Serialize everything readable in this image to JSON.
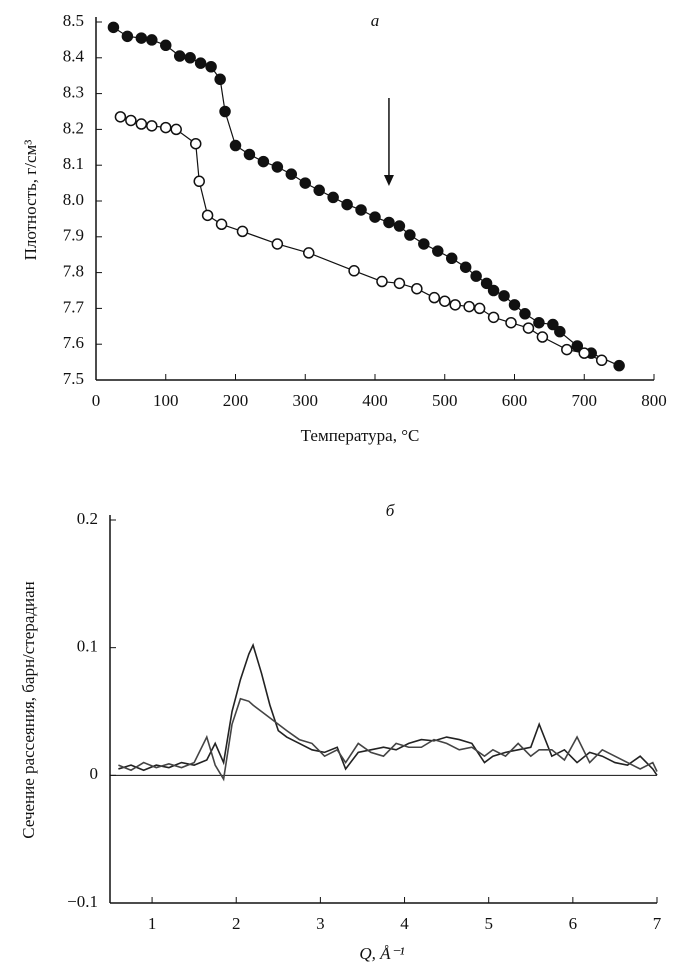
{
  "chart_data": [
    {
      "type": "line",
      "title": "а",
      "x_label": "Температура, °С",
      "y_label": "Плотность, г/см³",
      "xlim": [
        0,
        800
      ],
      "ylim": [
        7.5,
        8.5
      ],
      "xticks": [
        0,
        100,
        200,
        300,
        400,
        500,
        600,
        700,
        800
      ],
      "yticks": [
        7.5,
        7.6,
        7.7,
        7.8,
        7.9,
        {
          "value": 8,
          "label": "8.0"
        },
        8.1,
        8.2,
        8.3,
        8.4,
        8.5
      ],
      "arrow_x": 420,
      "series": [
        {
          "color": "#111",
          "marker": "filled",
          "x": [
            25,
            45,
            65,
            80,
            100,
            120,
            135,
            150,
            165,
            178,
            185,
            200,
            220,
            240,
            260,
            280,
            300,
            320,
            340,
            360,
            380,
            400,
            420,
            435,
            450,
            470,
            490,
            510,
            530,
            545,
            560,
            570,
            585,
            600,
            615,
            635,
            655,
            665,
            690,
            710,
            750
          ],
          "values": [
            8.485,
            8.46,
            8.455,
            8.45,
            8.435,
            8.405,
            8.4,
            8.385,
            8.375,
            8.34,
            8.25,
            8.155,
            8.13,
            8.11,
            8.095,
            8.075,
            8.05,
            8.03,
            8.01,
            7.99,
            7.975,
            7.955,
            7.94,
            7.93,
            7.905,
            7.88,
            7.86,
            7.84,
            7.815,
            7.79,
            7.77,
            7.75,
            7.735,
            7.71,
            7.685,
            7.66,
            7.655,
            7.635,
            7.595,
            7.575,
            7.54
          ]
        },
        {
          "color": "#111",
          "marker": "open",
          "x": [
            35,
            50,
            65,
            80,
            100,
            115,
            143,
            148,
            160,
            180,
            210,
            260,
            305,
            370,
            410,
            435,
            460,
            485,
            500,
            515,
            535,
            550,
            570,
            595,
            620,
            640,
            675,
            700,
            725
          ],
          "values": [
            8.235,
            8.225,
            8.215,
            8.21,
            8.205,
            8.2,
            8.16,
            8.055,
            7.96,
            7.935,
            7.915,
            7.88,
            7.855,
            7.805,
            7.775,
            7.77,
            7.755,
            7.73,
            7.72,
            7.71,
            7.705,
            7.7,
            7.675,
            7.66,
            7.645,
            7.62,
            7.585,
            7.575,
            7.555
          ]
        }
      ]
    },
    {
      "type": "line",
      "title": "б",
      "x_label": "Q, Å⁻¹",
      "y_label": "Сечение рассеяния, барн/стерадиан",
      "xlim": [
        0.5,
        7
      ],
      "ylim": [
        -0.1,
        0.2
      ],
      "xticks": [
        1,
        2,
        3,
        4,
        5,
        6,
        7
      ],
      "yticks": [
        {
          "value": -0.1,
          "label": "−0.1"
        },
        0,
        0.1,
        0.2
      ],
      "zero_line": true,
      "series": [
        {
          "color": "#222",
          "marker": "none",
          "x": [
            0.6,
            0.75,
            0.9,
            1.05,
            1.2,
            1.35,
            1.5,
            1.65,
            1.75,
            1.85,
            1.95,
            2.05,
            2.15,
            2.2,
            2.3,
            2.4,
            2.5,
            2.6,
            2.75,
            2.9,
            3.05,
            3.2,
            3.3,
            3.45,
            3.6,
            3.75,
            3.9,
            4.05,
            4.2,
            4.35,
            4.5,
            4.65,
            4.8,
            4.95,
            5.05,
            5.2,
            5.35,
            5.5,
            5.6,
            5.75,
            5.9,
            6.05,
            6.2,
            6.35,
            6.5,
            6.65,
            6.8,
            6.95,
            7.0
          ],
          "values": [
            0.005,
            0.008,
            0.004,
            0.008,
            0.006,
            0.01,
            0.008,
            0.012,
            0.025,
            0.01,
            0.05,
            0.075,
            0.095,
            0.102,
            0.08,
            0.055,
            0.035,
            0.03,
            0.025,
            0.02,
            0.018,
            0.022,
            0.005,
            0.018,
            0.02,
            0.022,
            0.02,
            0.025,
            0.028,
            0.027,
            0.03,
            0.028,
            0.025,
            0.01,
            0.015,
            0.018,
            0.02,
            0.022,
            0.04,
            0.015,
            0.02,
            0.01,
            0.018,
            0.015,
            0.01,
            0.008,
            0.015,
            0.005,
            0.0
          ]
        },
        {
          "color": "#444",
          "marker": "none",
          "x": [
            0.6,
            0.75,
            0.9,
            1.05,
            1.2,
            1.35,
            1.5,
            1.65,
            1.75,
            1.85,
            1.95,
            2.05,
            2.15,
            2.2,
            2.3,
            2.4,
            2.5,
            2.6,
            2.75,
            2.9,
            3.05,
            3.2,
            3.3,
            3.45,
            3.6,
            3.75,
            3.9,
            4.05,
            4.2,
            4.35,
            4.5,
            4.65,
            4.8,
            4.95,
            5.05,
            5.2,
            5.35,
            5.5,
            5.6,
            5.75,
            5.9,
            6.05,
            6.2,
            6.35,
            6.5,
            6.65,
            6.8,
            6.95,
            7.0
          ],
          "values": [
            0.008,
            0.004,
            0.01,
            0.006,
            0.009,
            0.006,
            0.01,
            0.03,
            0.008,
            -0.003,
            0.04,
            0.06,
            0.058,
            0.055,
            0.05,
            0.045,
            0.04,
            0.035,
            0.028,
            0.025,
            0.015,
            0.02,
            0.01,
            0.025,
            0.018,
            0.015,
            0.025,
            0.022,
            0.022,
            0.028,
            0.025,
            0.02,
            0.022,
            0.015,
            0.02,
            0.015,
            0.025,
            0.015,
            0.02,
            0.02,
            0.012,
            0.03,
            0.01,
            0.02,
            0.015,
            0.01,
            0.005,
            0.01,
            0.003
          ]
        }
      ]
    }
  ]
}
